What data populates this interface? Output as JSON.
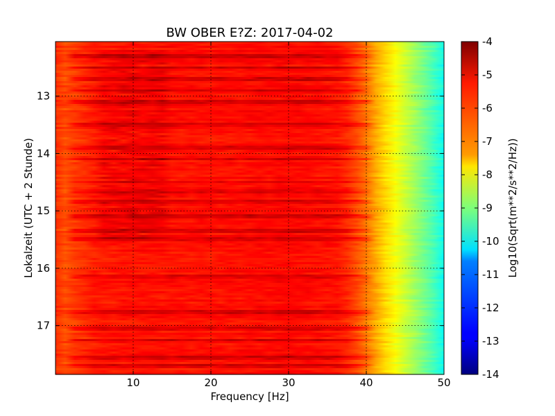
{
  "chart_data": {
    "type": "heatmap",
    "title": "BW OBER E?Z: 2017-04-02",
    "xlabel": "Frequency [Hz]",
    "ylabel": "Lokalzeit (UTC + 2 Stunde)",
    "xlim": [
      0,
      50
    ],
    "ylim": [
      17.85,
      12.05
    ],
    "x_ticks": [
      "10",
      "20",
      "30",
      "40",
      "50"
    ],
    "y_ticks": [
      "13",
      "14",
      "15",
      "16",
      "17"
    ],
    "grid": true,
    "colorbar": {
      "label": "Log10(Sqrt(m**2/s**2/Hz))",
      "range": [
        -14,
        -4
      ],
      "colormap": "jet",
      "ticks": [
        "-4",
        "-5",
        "-6",
        "-7",
        "-8",
        "-9",
        "-10",
        "-11",
        "-12",
        "-13",
        "-14"
      ]
    },
    "spectral_profile": {
      "frequency_hz": [
        0,
        1,
        5,
        10,
        20,
        30,
        36,
        38,
        40,
        42,
        44,
        46,
        48,
        50
      ],
      "log10_amplitude": [
        -5.7,
        -6.0,
        -5.5,
        -5.4,
        -5.4,
        -5.3,
        -5.4,
        -5.7,
        -6.4,
        -7.2,
        -7.9,
        -8.6,
        -9.3,
        -10.1
      ]
    },
    "strong_bands_hour": [
      12.3,
      12.5,
      12.7,
      12.9,
      13.1,
      13.5,
      13.9,
      14.1,
      14.5,
      14.65,
      14.85,
      15.1,
      15.35,
      15.5,
      16.15,
      16.75,
      17.05,
      17.25,
      17.55,
      17.7
    ],
    "low_freq_burst": {
      "frequency_hz": [
        5.5,
        14.5
      ],
      "hour": [
        12.2,
        15.5
      ]
    }
  }
}
